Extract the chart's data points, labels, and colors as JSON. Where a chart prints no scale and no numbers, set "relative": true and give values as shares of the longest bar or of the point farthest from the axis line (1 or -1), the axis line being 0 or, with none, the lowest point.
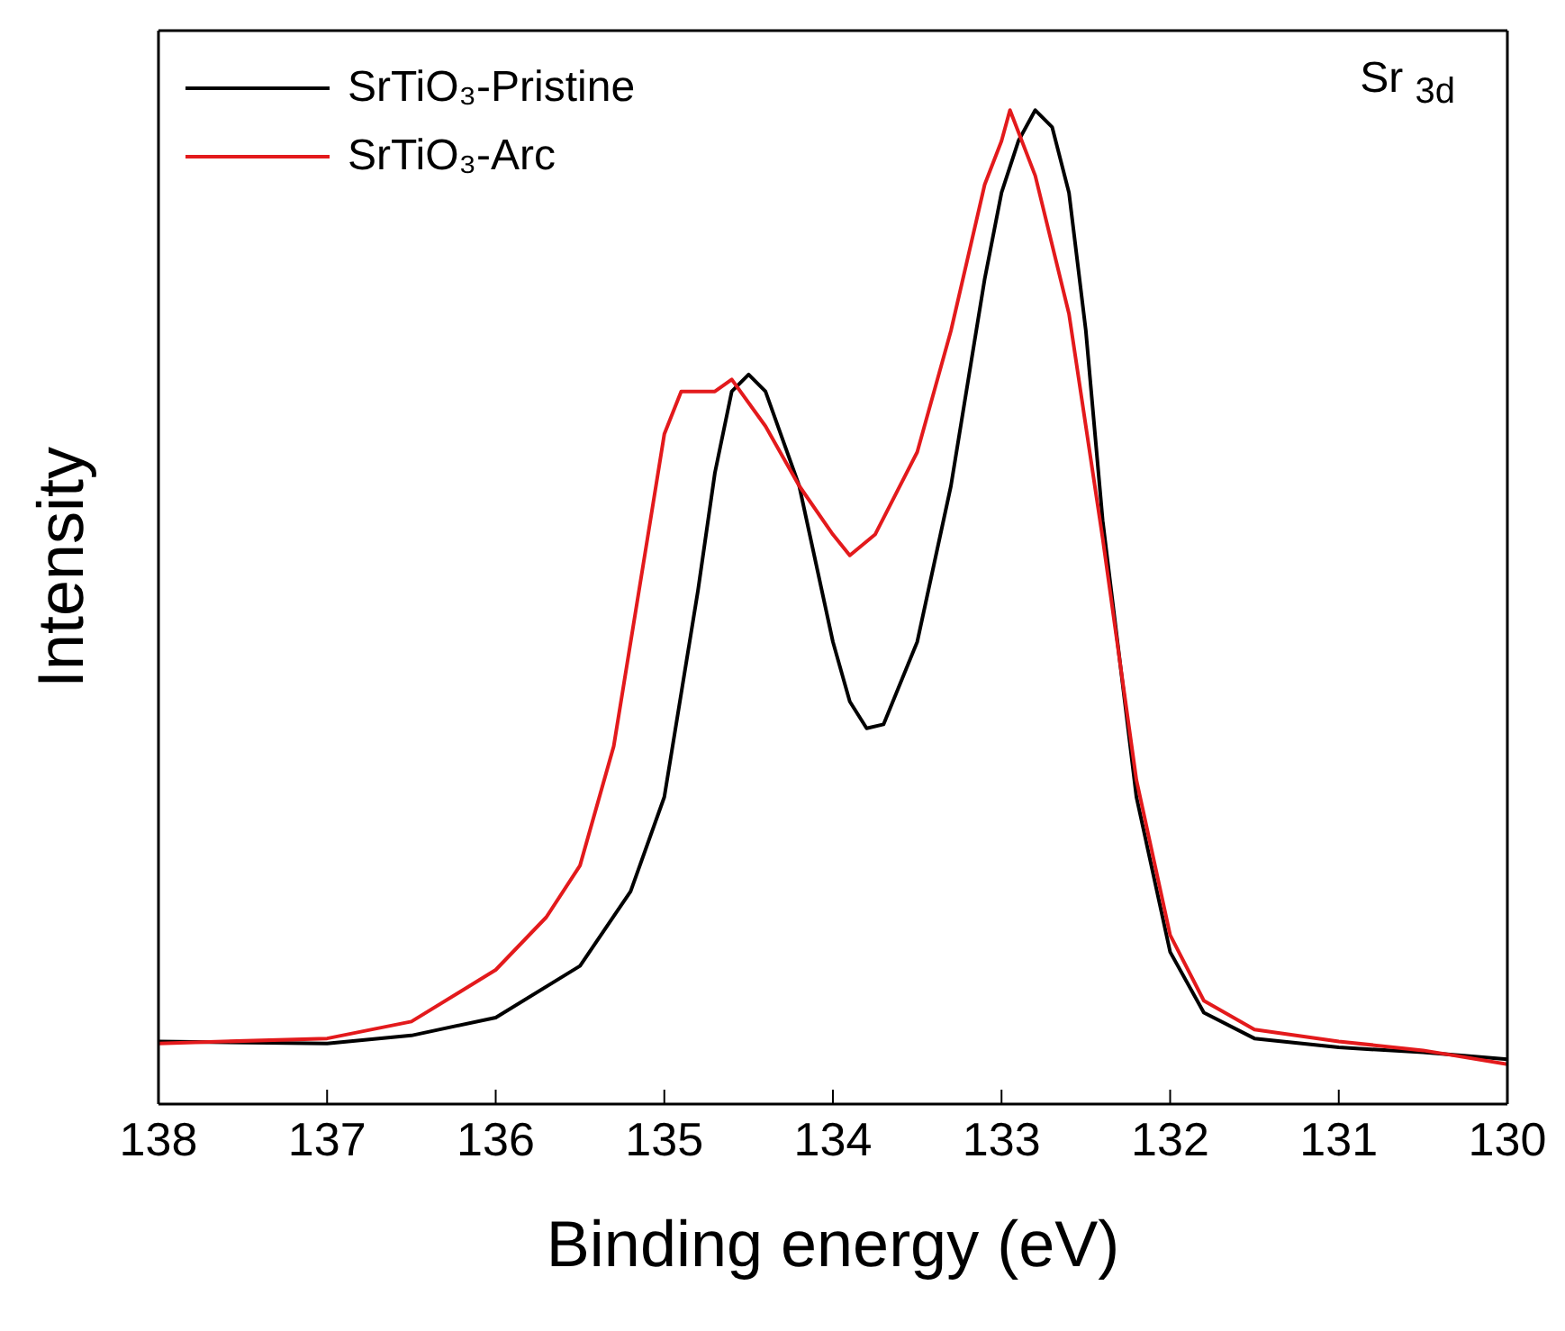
{
  "chart_data": {
    "type": "line",
    "relative": true,
    "xlabel": "Binding energy (eV)",
    "ylabel": "Intensity",
    "annotations": [
      "Sr $_{3d}$"
    ],
    "xlim": [
      138,
      130
    ],
    "xticks": [
      138,
      137,
      136,
      135,
      134,
      133,
      132,
      131,
      130
    ],
    "legend": "top left",
    "grid": false,
    "marker": "none",
    "line_style": "solid",
    "series": [
      {
        "name": "SrTiO₃-Pristine",
        "color": "#000000",
        "x": [
          138,
          137,
          136.5,
          136,
          135.5,
          135.2,
          135,
          134.8,
          134.7,
          134.6,
          134.5,
          134.4,
          134.2,
          134,
          133.9,
          133.8,
          133.7,
          133.5,
          133.3,
          133.1,
          133,
          132.9,
          132.8,
          132.7,
          132.6,
          132.5,
          132.4,
          132.2,
          132,
          131.8,
          131.5,
          131,
          130.5,
          130
        ],
        "values": [
          0.063,
          0.061,
          0.069,
          0.087,
          0.139,
          0.214,
          0.309,
          0.517,
          0.635,
          0.717,
          0.734,
          0.717,
          0.622,
          0.465,
          0.405,
          0.378,
          0.382,
          0.465,
          0.622,
          0.83,
          0.917,
          0.969,
          1,
          0.983,
          0.917,
          0.778,
          0.587,
          0.309,
          0.153,
          0.092,
          0.066,
          0.057,
          0.052,
          0.045
        ]
      },
      {
        "name": "SrTiO₃-Arc",
        "color": "#e31a1c",
        "x": [
          138,
          137,
          136.5,
          136,
          135.7,
          135.5,
          135.3,
          135.1,
          135,
          134.9,
          134.7,
          134.6,
          134.4,
          134.2,
          134,
          133.9,
          133.75,
          133.5,
          133.3,
          133.1,
          133,
          132.95,
          132.8,
          132.6,
          132.4,
          132.2,
          132,
          131.8,
          131.5,
          131,
          130.5,
          130
        ],
        "values": [
          0.061,
          0.066,
          0.083,
          0.135,
          0.188,
          0.24,
          0.36,
          0.569,
          0.674,
          0.717,
          0.717,
          0.729,
          0.682,
          0.622,
          0.573,
          0.552,
          0.573,
          0.656,
          0.778,
          0.925,
          0.969,
          1,
          0.934,
          0.795,
          0.569,
          0.326,
          0.17,
          0.104,
          0.075,
          0.063,
          0.054,
          0.04
        ]
      }
    ]
  }
}
